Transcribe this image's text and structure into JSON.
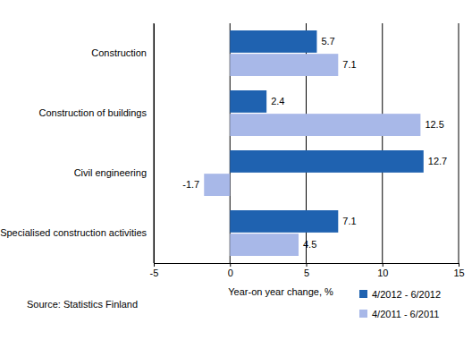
{
  "chart_data": {
    "type": "bar",
    "orientation": "horizontal",
    "categories": [
      "Construction",
      "Construction of buildings",
      "Civil engineering",
      "Specialised construction activities"
    ],
    "series": [
      {
        "name": "4/2012 - 6/2012",
        "color": "#1f62b0",
        "values": [
          5.7,
          2.4,
          12.7,
          7.1
        ]
      },
      {
        "name": "4/2011 - 6/2011",
        "color": "#a8b8e8",
        "values": [
          7.1,
          12.5,
          -1.7,
          4.5
        ]
      }
    ],
    "xlabel": "Year-on year change, %",
    "xlim": [
      -5,
      15
    ],
    "xticks": [
      -5,
      0,
      5,
      10,
      15
    ],
    "grid": true,
    "legend": "bottom-right",
    "data_labels": true,
    "annotations": [
      "Source: Statistics Finland"
    ]
  }
}
